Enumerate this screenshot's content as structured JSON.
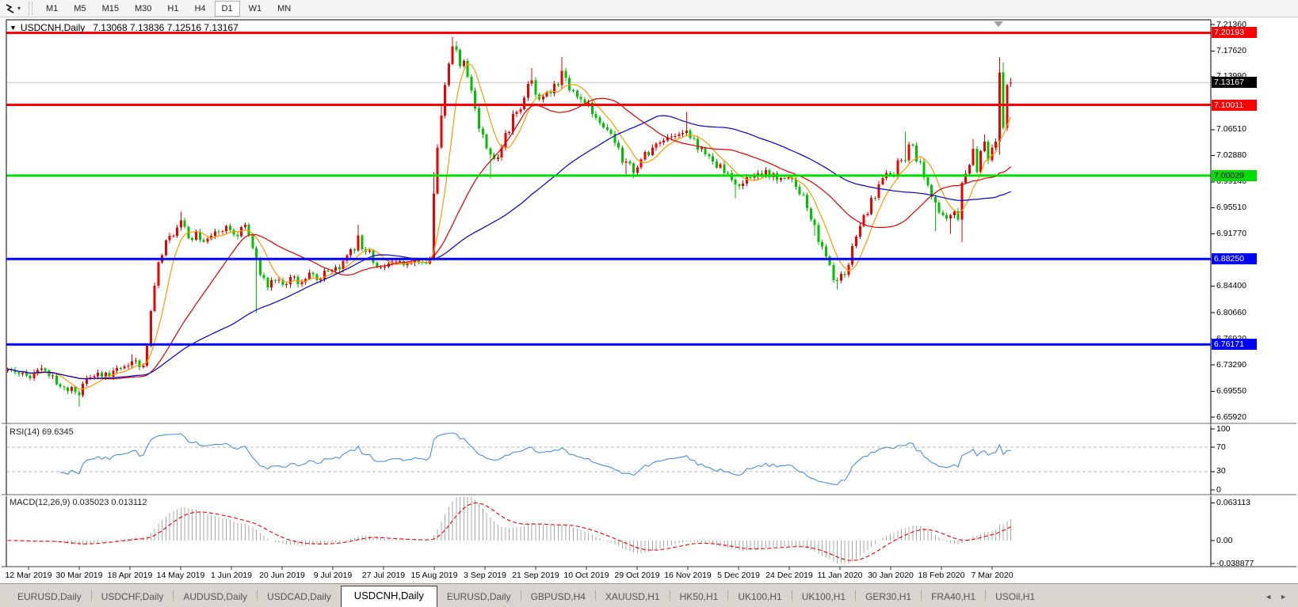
{
  "toolbar": {
    "cursor_tool": "cursor-lightning",
    "timeframes": [
      "M1",
      "M5",
      "M15",
      "M30",
      "H1",
      "H4",
      "D1",
      "W1",
      "MN"
    ],
    "active_timeframe": "D1"
  },
  "chart": {
    "title_symbol": "USDCNH,Daily",
    "title_ohlc": "7.13068 7.13836 7.12516 7.13167",
    "rsi_label": "RSI(14) 69.6345",
    "macd_label": "MACD(12,26,9) 0.035023 0.013112"
  },
  "chart_data": {
    "type": "candlestick",
    "symbol": "USDCNH",
    "timeframe": "Daily",
    "current": {
      "open": 7.13068,
      "high": 7.13836,
      "low": 7.12516,
      "close": 7.13167
    },
    "current_price": 7.13167,
    "price_axis": {
      "visible_ticks": [
        "7.21360",
        "7.17620",
        "7.13990",
        "7.06510",
        "7.02880",
        "6.99140",
        "6.95510",
        "6.91770",
        "6.84400",
        "6.80660",
        "6.76920",
        "6.73290",
        "6.69550",
        "6.65920"
      ],
      "max": 7.2136,
      "min": 6.6592
    },
    "levels": [
      {
        "price": 7.20193,
        "color": "#ff0000",
        "label": "7.20193",
        "text": "#ffffff"
      },
      {
        "price": 7.10011,
        "color": "#ff0000",
        "label": "7.10011",
        "text": "#ffffff"
      },
      {
        "price": 7.00029,
        "color": "#00dd00",
        "label": "7.00029",
        "text": "#000000"
      },
      {
        "price": 6.8825,
        "color": "#0000ff",
        "label": "6.88250",
        "text": "#ffffff"
      },
      {
        "price": 6.76171,
        "color": "#0000ff",
        "label": "6.76171",
        "text": "#ffffff"
      }
    ],
    "current_badge": {
      "label": "7.13167",
      "bg": "#000000",
      "text": "#ffffff"
    },
    "date_labels": [
      "12 Mar 2019",
      "30 Mar 2019",
      "18 Apr 2019",
      "14 May 2019",
      "1 Jun 2019",
      "20 Jun 2019",
      "9 Jul 2019",
      "27 Jul 2019",
      "15 Aug 2019",
      "3 Sep 2019",
      "21 Sep 2019",
      "10 Oct 2019",
      "29 Oct 2019",
      "16 Nov 2019",
      "5 Dec 2019",
      "24 Dec 2019",
      "11 Jan 2020",
      "30 Jan 2020",
      "18 Feb 2020",
      "7 Mar 2020"
    ],
    "candles": {
      "count": 267,
      "up_color": "#ee0000",
      "down_color": "#00c000",
      "keyframes": [
        [
          0,
          6.727
        ],
        [
          3,
          6.72
        ],
        [
          6,
          6.714
        ],
        [
          9,
          6.728
        ],
        [
          12,
          6.718
        ],
        [
          15,
          6.701
        ],
        [
          19,
          6.69
        ],
        [
          21,
          6.714
        ],
        [
          24,
          6.722
        ],
        [
          27,
          6.716
        ],
        [
          30,
          6.728
        ],
        [
          33,
          6.738
        ],
        [
          36,
          6.732
        ],
        [
          37,
          6.76
        ],
        [
          39,
          6.845
        ],
        [
          41,
          6.888
        ],
        [
          43,
          6.915
        ],
        [
          46,
          6.937
        ],
        [
          48,
          6.912
        ],
        [
          50,
          6.921
        ],
        [
          52,
          6.907
        ],
        [
          54,
          6.915
        ],
        [
          56,
          6.921
        ],
        [
          58,
          6.929
        ],
        [
          60,
          6.917
        ],
        [
          63,
          6.931
        ],
        [
          65,
          6.898
        ],
        [
          67,
          6.86
        ],
        [
          69,
          6.842
        ],
        [
          71,
          6.852
        ],
        [
          73,
          6.846
        ],
        [
          75,
          6.857
        ],
        [
          77,
          6.847
        ],
        [
          79,
          6.854
        ],
        [
          81,
          6.861
        ],
        [
          83,
          6.854
        ],
        [
          85,
          6.866
        ],
        [
          87,
          6.871
        ],
        [
          89,
          6.88
        ],
        [
          91,
          6.896
        ],
        [
          93,
          6.916
        ],
        [
          95,
          6.893
        ],
        [
          97,
          6.877
        ],
        [
          99,
          6.871
        ],
        [
          101,
          6.876
        ],
        [
          103,
          6.879
        ],
        [
          105,
          6.874
        ],
        [
          107,
          6.877
        ],
        [
          109,
          6.879
        ],
        [
          111,
          6.876
        ],
        [
          112,
          6.882
        ],
        [
          113,
          6.975
        ],
        [
          114,
          7.04
        ],
        [
          115,
          7.085
        ],
        [
          116,
          7.128
        ],
        [
          117,
          7.158
        ],
        [
          118,
          7.183
        ],
        [
          119,
          7.178
        ],
        [
          120,
          7.155
        ],
        [
          121,
          7.162
        ],
        [
          122,
          7.14
        ],
        [
          124,
          7.095
        ],
        [
          126,
          7.058
        ],
        [
          128,
          7.03
        ],
        [
          130,
          7.026
        ],
        [
          131,
          7.04
        ],
        [
          133,
          7.062
        ],
        [
          135,
          7.09
        ],
        [
          137,
          7.11
        ],
        [
          139,
          7.135
        ],
        [
          141,
          7.108
        ],
        [
          143,
          7.118
        ],
        [
          145,
          7.13
        ],
        [
          147,
          7.148
        ],
        [
          148,
          7.138
        ],
        [
          150,
          7.12
        ],
        [
          153,
          7.101
        ],
        [
          156,
          7.082
        ],
        [
          159,
          7.065
        ],
        [
          162,
          7.04
        ],
        [
          164,
          7.02
        ],
        [
          166,
          7.004
        ],
        [
          168,
          7.023
        ],
        [
          171,
          7.04
        ],
        [
          174,
          7.05
        ],
        [
          177,
          7.056
        ],
        [
          180,
          7.064
        ],
        [
          182,
          7.052
        ],
        [
          184,
          7.04
        ],
        [
          187,
          7.02
        ],
        [
          190,
          7.004
        ],
        [
          193,
          6.988
        ],
        [
          195,
          6.989
        ],
        [
          198,
          7.0
        ],
        [
          201,
          7.008
        ],
        [
          204,
          6.994
        ],
        [
          207,
          6.998
        ],
        [
          210,
          6.974
        ],
        [
          212,
          6.954
        ],
        [
          214,
          6.93
        ],
        [
          216,
          6.9
        ],
        [
          218,
          6.874
        ],
        [
          220,
          6.852
        ],
        [
          222,
          6.86
        ],
        [
          225,
          6.914
        ],
        [
          227,
          6.944
        ],
        [
          229,
          6.969
        ],
        [
          231,
          6.988
        ],
        [
          233,
          7.004
        ],
        [
          235,
          7.0
        ],
        [
          237,
          7.022
        ],
        [
          239,
          7.044
        ],
        [
          241,
          7.02
        ],
        [
          243,
          6.998
        ],
        [
          245,
          6.97
        ],
        [
          247,
          6.948
        ],
        [
          249,
          6.94
        ],
        [
          251,
          6.95
        ],
        [
          252,
          6.938
        ],
        [
          253,
          6.99
        ],
        [
          255,
          7.015
        ],
        [
          256,
          7.038
        ],
        [
          257,
          7.005
        ],
        [
          258,
          7.035
        ],
        [
          259,
          7.048
        ],
        [
          260,
          7.022
        ],
        [
          261,
          7.04
        ],
        [
          262,
          7.048
        ],
        [
          263,
          7.146
        ],
        [
          264,
          7.068
        ],
        [
          265,
          7.128
        ],
        [
          266,
          7.132
        ]
      ],
      "wicks": [
        [
          19,
          null,
          6.674
        ],
        [
          33,
          6.748,
          null
        ],
        [
          46,
          6.949,
          null
        ],
        [
          66,
          null,
          6.806
        ],
        [
          93,
          6.931,
          null
        ],
        [
          113,
          7.005,
          6.88
        ],
        [
          115,
          7.1,
          null
        ],
        [
          118,
          7.196,
          null
        ],
        [
          119,
          7.19,
          null
        ],
        [
          128,
          null,
          6.996
        ],
        [
          139,
          7.152,
          null
        ],
        [
          147,
          7.168,
          null
        ],
        [
          164,
          null,
          7.0
        ],
        [
          166,
          null,
          6.997
        ],
        [
          180,
          7.09,
          null
        ],
        [
          193,
          null,
          6.968
        ],
        [
          214,
          null,
          6.915
        ],
        [
          220,
          null,
          6.84
        ],
        [
          238,
          7.062,
          null
        ],
        [
          246,
          null,
          6.922
        ],
        [
          250,
          null,
          6.918
        ],
        [
          253,
          null,
          6.906
        ],
        [
          256,
          7.052,
          null
        ],
        [
          259,
          7.058,
          null
        ],
        [
          263,
          7.167,
          7.03
        ],
        [
          264,
          7.16,
          null
        ]
      ]
    },
    "moving_averages": [
      {
        "name": "fast",
        "period": 7,
        "color": "#ff9900"
      },
      {
        "name": "medium",
        "period": 25,
        "color": "#dd0000"
      },
      {
        "name": "slow",
        "period": 60,
        "color": "#0000c8"
      }
    ],
    "rsi": {
      "period": 14,
      "current": 69.6345,
      "color": "#4a90d9",
      "scale_labels": [
        "100",
        "70",
        "30",
        "0"
      ],
      "dashed_levels": [
        70,
        30
      ]
    },
    "macd": {
      "fast": 12,
      "slow": 26,
      "signal": 9,
      "current_main": 0.035023,
      "current_signal": 0.013112,
      "hist_color": "#a8a8a8",
      "signal_color": "#ee0000",
      "scale_labels": [
        {
          "label": "0.063113",
          "value": 0.063113
        },
        {
          "label": "0.00",
          "value": 0.0
        },
        {
          "label": "-0.038877",
          "value": -0.038877
        }
      ]
    }
  },
  "tabs": {
    "items": [
      "EURUSD,Daily",
      "USDCHF,Daily",
      "AUDUSD,Daily",
      "USDCAD,Daily",
      "USDCNH,Daily",
      "EURUSD,Daily",
      "GBPUSD,H4",
      "XAUUSD,H1",
      "HK50,H1",
      "UK100,H1",
      "UK100,H1",
      "GER30,H1",
      "FRA40,H1",
      "USOil,H1"
    ],
    "active_index": 4,
    "scroll_left_icon": "tab-scroll-left",
    "scroll_right_icon": "tab-scroll-right"
  }
}
